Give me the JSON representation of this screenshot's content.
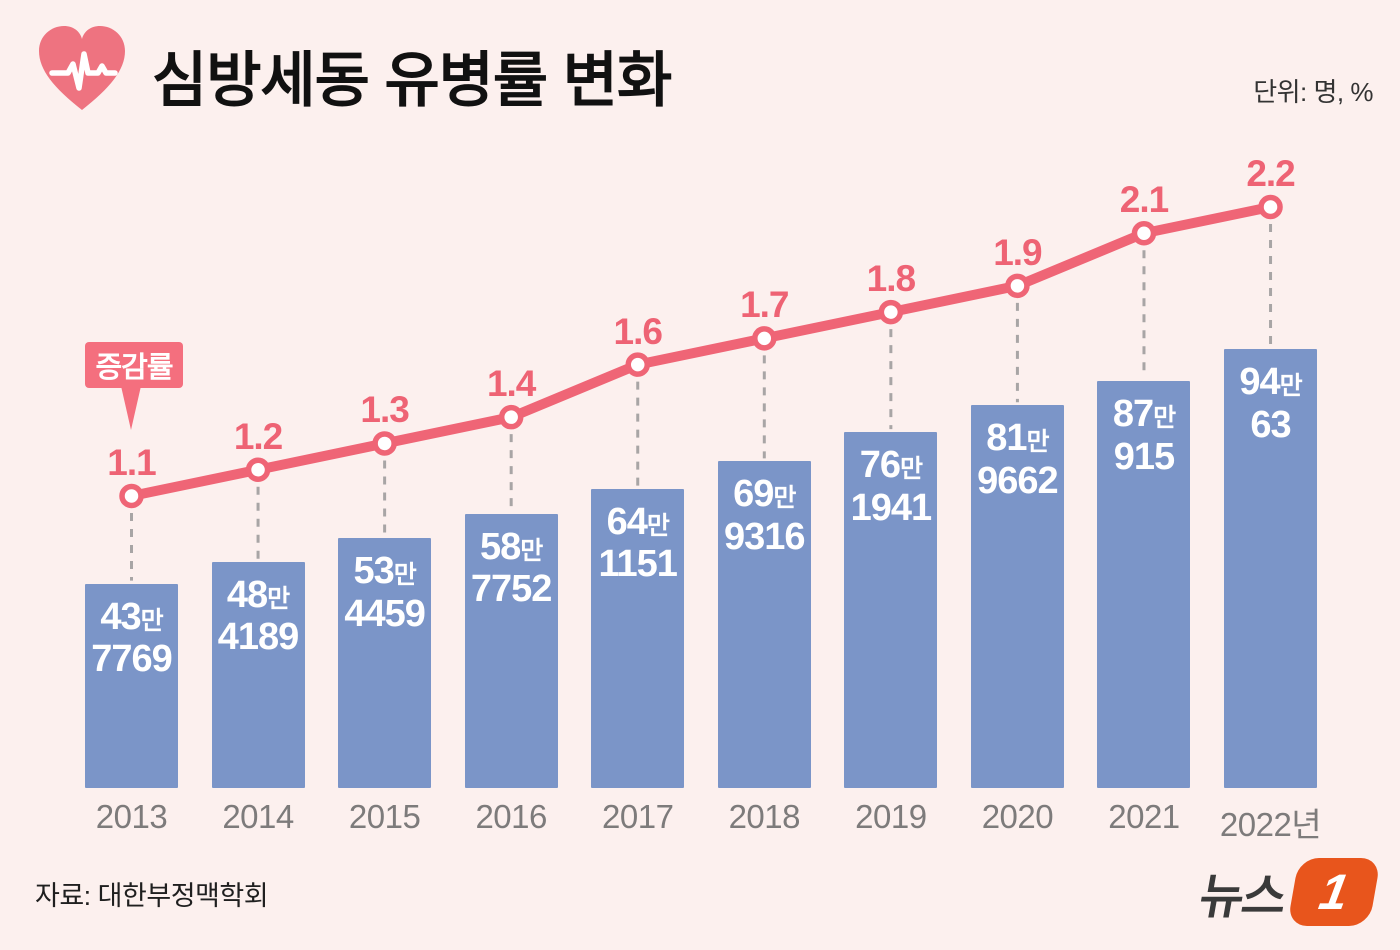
{
  "title": "심방세동 유병률 변화",
  "unit_label": "단위: 명, %",
  "callout_label": "증감률",
  "source_label": "자료: 대한부정맥학회",
  "logo": {
    "text": "뉴스",
    "badge": "1"
  },
  "colors": {
    "background": "#fcf0ee",
    "bar": "#7b95c8",
    "bar_label": "#ffffff",
    "line": "#ef6576",
    "point_fill": "#ffffff",
    "point_label": "#ee6374",
    "callout_bg": "#f46f7e",
    "callout_text": "#ffffff",
    "axis_label": "#7d7b7b",
    "title_text": "#111111",
    "unit_text": "#333333",
    "source_text": "#1f1f1f",
    "dashed": "#a8a5a5",
    "heart": "#ee7380",
    "logo_text": "#3a3a3a",
    "logo_badge_bg": "#e8551c",
    "logo_badge_text": "#ffffff"
  },
  "chart_data": {
    "type": "combo",
    "categories": [
      "2013",
      "2014",
      "2015",
      "2016",
      "2017",
      "2018",
      "2019",
      "2020",
      "2021",
      "2022년"
    ],
    "bar_series": {
      "unit": "명",
      "values": [
        437769,
        484189,
        534459,
        587752,
        641151,
        699316,
        761941,
        819662,
        870915,
        940063
      ],
      "value_labels": [
        {
          "man": "43",
          "suffix": "만",
          "rest": "7769"
        },
        {
          "man": "48",
          "suffix": "만",
          "rest": "4189"
        },
        {
          "man": "53",
          "suffix": "만",
          "rest": "4459"
        },
        {
          "man": "58",
          "suffix": "만",
          "rest": "7752"
        },
        {
          "man": "64",
          "suffix": "만",
          "rest": "1151"
        },
        {
          "man": "69",
          "suffix": "만",
          "rest": "9316"
        },
        {
          "man": "76",
          "suffix": "만",
          "rest": "1941"
        },
        {
          "man": "81",
          "suffix": "만",
          "rest": "9662"
        },
        {
          "man": "87",
          "suffix": "만",
          "rest": "915"
        },
        {
          "man": "94",
          "suffix": "만",
          "rest": "63"
        }
      ],
      "ylim": [
        0,
        940063
      ]
    },
    "line_series": {
      "label": "증감률",
      "unit": "%",
      "values": [
        1.1,
        1.2,
        1.3,
        1.4,
        1.6,
        1.7,
        1.8,
        1.9,
        2.1,
        2.2
      ],
      "value_labels": [
        "1.1",
        "1.2",
        "1.3",
        "1.4",
        "1.6",
        "1.7",
        "1.8",
        "1.9",
        "2.1",
        "2.2"
      ]
    },
    "grid": false,
    "legend_position": "callout-top-left"
  }
}
